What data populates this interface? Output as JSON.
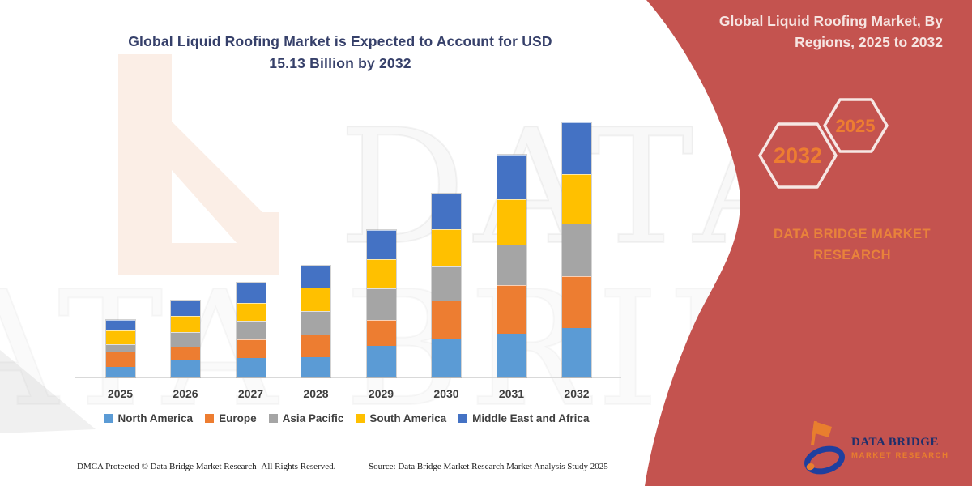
{
  "title": {
    "line1": "Global Liquid Roofing Market is Expected to Account for USD",
    "line2": "15.13 Billion by 2032"
  },
  "side_panel": {
    "title_line1": "Global Liquid Roofing Market, By",
    "title_line2": "Regions, 2025 to 2032",
    "hexagon_large_label": "2032",
    "hexagon_small_label": "2025",
    "brand_line1": "DATA BRIDGE MARKET",
    "brand_line2": "RESEARCH"
  },
  "logo": {
    "name_line": "DATA BRIDGE",
    "sub_line": "MARKET RESEARCH"
  },
  "watermark": {
    "line1": "DATA BRI",
    "line2": "ATA BRID"
  },
  "footer": {
    "left": "DMCA Protected © Data Bridge Market Research- All Rights Reserved.",
    "right": "Source: Data Bridge Market Research Market Analysis Study 2025"
  },
  "chart_data": {
    "type": "bar",
    "stacked": true,
    "title": "Global Liquid Roofing Market is Expected to Account for USD 15.13 Billion by 2032",
    "unit": "USD Billion",
    "categories": [
      "2025",
      "2026",
      "2027",
      "2028",
      "2029",
      "2030",
      "2031",
      "2032"
    ],
    "series": [
      {
        "name": "North America",
        "color": "#5B9BD5",
        "values": [
          0.62,
          1.05,
          1.19,
          1.2,
          1.9,
          2.3,
          2.65,
          2.95
        ]
      },
      {
        "name": "Europe",
        "color": "#ED7D31",
        "values": [
          0.88,
          0.76,
          1.07,
          1.34,
          1.52,
          2.28,
          2.85,
          3.1
        ]
      },
      {
        "name": "Asia Pacific",
        "color": "#A5A5A5",
        "values": [
          0.4,
          0.82,
          1.07,
          1.34,
          1.85,
          1.97,
          2.38,
          3.12
        ]
      },
      {
        "name": "South America",
        "color": "#FFC000",
        "values": [
          0.77,
          0.9,
          0.98,
          1.4,
          1.7,
          2.2,
          2.67,
          2.91
        ]
      },
      {
        "name": "Middle East and Africa",
        "color": "#4472C4",
        "values": [
          0.62,
          0.9,
          1.19,
          1.22,
          1.7,
          2.1,
          2.62,
          3.05
        ]
      }
    ],
    "totals_note": "2032 total = 15.13 USD Billion",
    "ylim": [
      0,
      15.5
    ],
    "grid": false,
    "y_axis_visible": false,
    "legend_position": "bottom"
  },
  "colors": {
    "panel_red": "#C4534F",
    "panel_title_text": "#F6E4E1",
    "hexagon_outline": "#F6E7E4",
    "hexagon_text": "#ED7D31",
    "brand_text": "#E8823B",
    "chart_title_text": "#36406A",
    "axis_label_text": "#3F3F3F",
    "baseline": "#D9D9D9",
    "footer_text": "#1A1A1A",
    "logo_navy": "#1F2F6B",
    "logo_orange": "#E87E2E",
    "watermark_peach": "#FBEEE6"
  }
}
